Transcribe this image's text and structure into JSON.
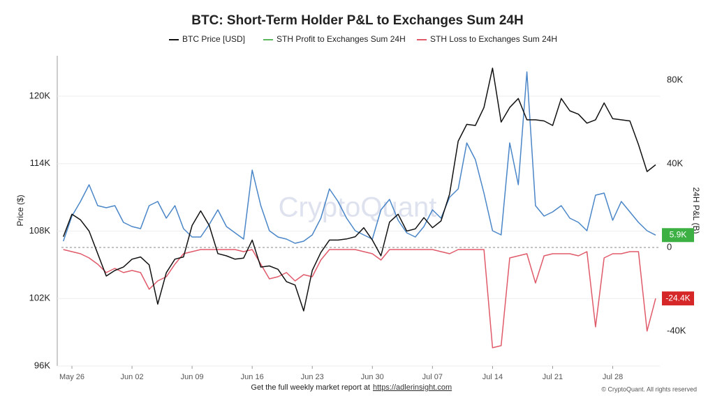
{
  "chart_data": {
    "type": "line",
    "title": "BTC: Short-Term Holder P&L to Exchanges Sum 24H",
    "y_label": "Price ($)",
    "y2_label": "24H P&L (B)",
    "watermark": "CryptoQuant",
    "footer": "Get the full weekly market report at",
    "footer_link": "https://adlerinsight.com",
    "copyright": "© CryptoQuant. All rights reserved",
    "categories": [
      null,
      "May 26",
      null,
      null,
      null,
      null,
      null,
      null,
      "Jun 02",
      null,
      null,
      null,
      null,
      null,
      null,
      "Jun 09",
      null,
      null,
      null,
      null,
      null,
      null,
      "Jun 16",
      null,
      null,
      null,
      null,
      null,
      null,
      "Jun 23",
      null,
      null,
      null,
      null,
      null,
      null,
      "Jun 30",
      null,
      null,
      null,
      null,
      null,
      null,
      "Jul 07",
      null,
      null,
      null,
      null,
      null,
      null,
      "Jul 14",
      null,
      null,
      null,
      null,
      null,
      null,
      "Jul 21",
      null,
      null,
      null,
      null,
      null,
      null,
      "Jul 28",
      null,
      null,
      null,
      null,
      null
    ],
    "ylim": [
      96000,
      123600
    ],
    "yticks": [
      {
        "value": 96000,
        "label": "96K"
      },
      {
        "value": 102000,
        "label": "102K"
      },
      {
        "value": 108000,
        "label": "108K"
      },
      {
        "value": 114000,
        "label": "114K"
      },
      {
        "value": 120000,
        "label": "120K"
      }
    ],
    "y2lim": [
      -56700,
      91700
    ],
    "y2ticks": [
      {
        "value": -40000,
        "label": "-40K"
      },
      0,
      {
        "value": 40000,
        "label": "40K"
      },
      {
        "value": 80000,
        "label": "80K"
      }
    ],
    "grid": true,
    "series": [
      {
        "name": "BTC Price [USD]",
        "color": "#111111",
        "line_color": "#111111",
        "values": [
          107500,
          109500,
          109000,
          108000,
          106000,
          104000,
          104500,
          104800,
          105500,
          105700,
          105000,
          101500,
          104300,
          105500,
          105700,
          108500,
          109800,
          108500,
          106000,
          105800,
          105500,
          105600,
          107200,
          104800,
          104900,
          104600,
          103500,
          103200,
          100900,
          104500,
          106100,
          107200,
          107200,
          107300,
          107500,
          108300,
          107200,
          105800,
          108800,
          109500,
          108000,
          108200,
          109200,
          108300,
          108900,
          111300,
          116000,
          117500,
          117400,
          119000,
          122500,
          117700,
          119000,
          119800,
          117900,
          117900,
          117800,
          117400,
          119800,
          118700,
          118400,
          117600,
          117900,
          119400,
          118000,
          117900,
          117800,
          115700,
          113300,
          113900
        ]
      },
      {
        "name": "STH Profit to Exchanges Sum 24H",
        "color": "#5cb85c",
        "line_color": "#4a86c8",
        "axis": "y2",
        "label_fill": "#3cb043",
        "values": [
          3000,
          15000,
          22000,
          30000,
          20000,
          19000,
          20000,
          12000,
          10000,
          9000,
          20000,
          22000,
          14000,
          20000,
          9000,
          5000,
          5000,
          11000,
          18000,
          10000,
          7000,
          4000,
          37000,
          20000,
          8000,
          5000,
          4000,
          2000,
          3000,
          6000,
          14000,
          28000,
          22000,
          14000,
          8000,
          6000,
          4000,
          18000,
          23000,
          13000,
          7000,
          5000,
          10000,
          18000,
          14000,
          24000,
          28000,
          50000,
          42000,
          26000,
          8000,
          6000,
          50000,
          30000,
          84000,
          20000,
          15000,
          17000,
          20000,
          14000,
          12000,
          8000,
          25000,
          26000,
          13000,
          22000,
          17000,
          12000,
          8000,
          5900
        ],
        "value_labels": [
          null,
          null,
          null,
          null,
          null,
          null,
          null,
          null,
          null,
          null,
          null,
          null,
          null,
          null,
          null,
          null,
          null,
          null,
          null,
          null,
          null,
          null,
          null,
          null,
          null,
          null,
          null,
          null,
          null,
          null,
          null,
          null,
          null,
          null,
          null,
          null,
          null,
          null,
          null,
          null,
          null,
          null,
          null,
          null,
          null,
          null,
          null,
          null,
          null,
          null,
          null,
          null,
          null,
          null,
          null,
          null,
          null,
          null,
          null,
          null,
          null,
          null,
          null,
          null,
          null,
          null,
          null,
          null,
          null,
          "5.9K"
        ]
      },
      {
        "name": "STH Loss to Exchanges Sum 24H",
        "color": "#e05a6a",
        "line_color": "#e05a6a",
        "axis": "y2",
        "label_fill": "#d62728",
        "values": [
          -1000,
          -2000,
          -3000,
          -5000,
          -8000,
          -12000,
          -10000,
          -12000,
          -11000,
          -12000,
          -20000,
          -16000,
          -14000,
          -8000,
          -3000,
          -2000,
          -1000,
          -1000,
          -1000,
          -1000,
          -1000,
          -2000,
          -1000,
          -8000,
          -15000,
          -14000,
          -12000,
          -16000,
          -13000,
          -14000,
          -6000,
          -1000,
          -1000,
          -1000,
          -1000,
          -2000,
          -3000,
          -6000,
          -1000,
          -1000,
          -1000,
          -1000,
          -1000,
          -1000,
          -2000,
          -3000,
          -1000,
          -1000,
          -1000,
          -1000,
          -48000,
          -47000,
          -5000,
          -4000,
          -3000,
          -17000,
          -4000,
          -3000,
          -3000,
          -3000,
          -4000,
          -2000,
          -38000,
          -5000,
          -3000,
          -3000,
          -2000,
          -2000,
          -40000,
          -24400
        ],
        "value_labels": [
          null,
          null,
          null,
          null,
          null,
          null,
          null,
          null,
          null,
          null,
          null,
          null,
          null,
          null,
          null,
          null,
          null,
          null,
          null,
          null,
          null,
          null,
          null,
          null,
          null,
          null,
          null,
          null,
          null,
          null,
          null,
          null,
          null,
          null,
          null,
          null,
          null,
          null,
          null,
          null,
          null,
          null,
          null,
          null,
          null,
          null,
          null,
          null,
          null,
          null,
          null,
          null,
          null,
          null,
          null,
          null,
          null,
          null,
          null,
          null,
          null,
          null,
          null,
          null,
          null,
          null,
          null,
          null,
          null,
          "-24.4K"
        ]
      }
    ]
  }
}
